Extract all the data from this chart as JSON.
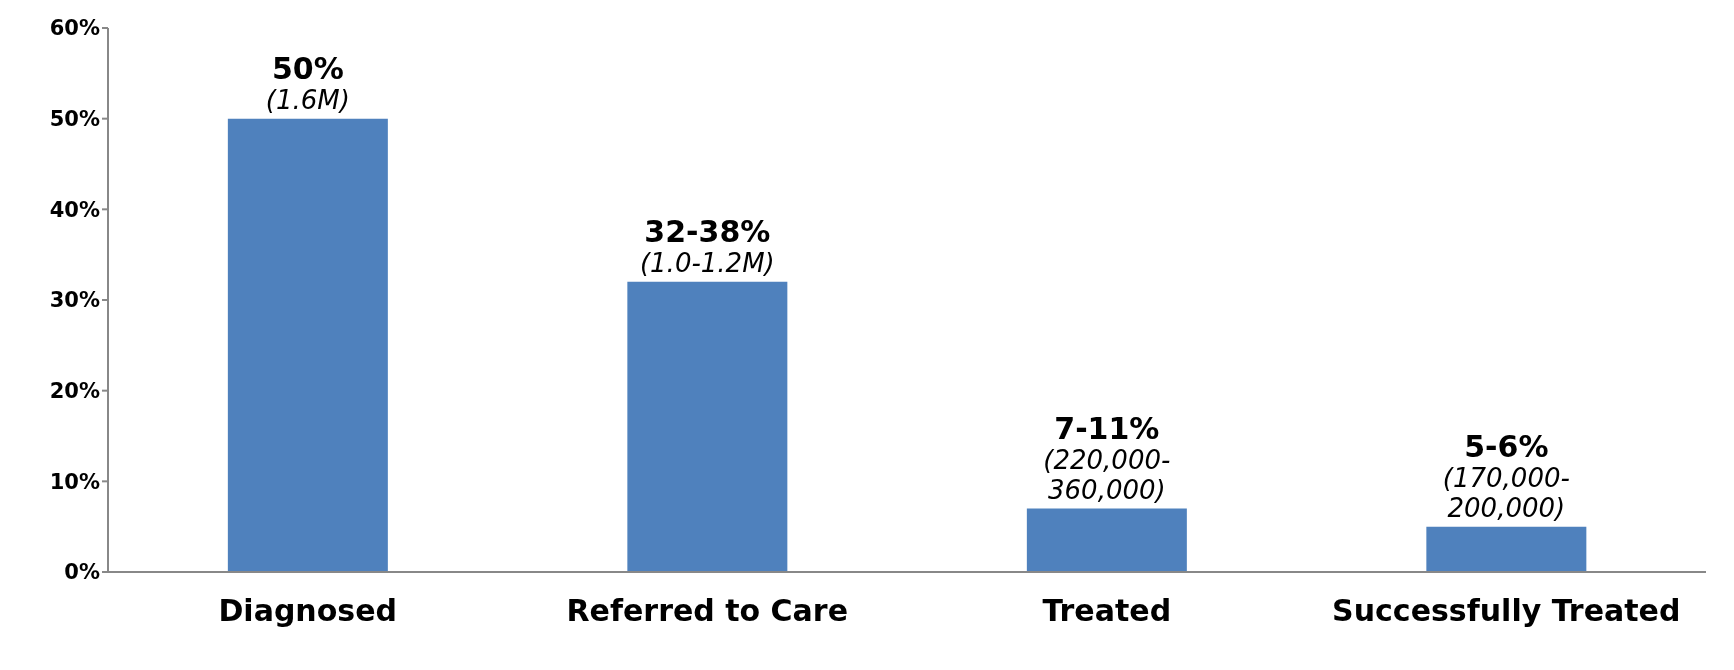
{
  "chart_data": {
    "type": "bar",
    "categories": [
      "Diagnosed",
      "Referred to Care",
      "Treated",
      "Successfully Treated"
    ],
    "values": [
      50,
      32,
      7,
      5
    ],
    "color": "#4f81bd",
    "value_labels": [
      "50%\n(1.6M)",
      "32-38%\n(1.0-1.2M)",
      "7-11%\n(220,000-\n360,000)",
      "5-6%\n(170,000-\n200,000)"
    ],
    "ylim": [
      0,
      60
    ],
    "yticks": [
      {
        "value": 0,
        "label": "0%"
      },
      {
        "value": 10,
        "label": "10%"
      },
      {
        "value": 20,
        "label": "20%"
      },
      {
        "value": 30,
        "label": "30%"
      },
      {
        "value": 40,
        "label": "40%"
      },
      {
        "value": 50,
        "label": "50%"
      },
      {
        "value": 60,
        "label": "60%"
      }
    ],
    "grid": false,
    "legend": false
  }
}
